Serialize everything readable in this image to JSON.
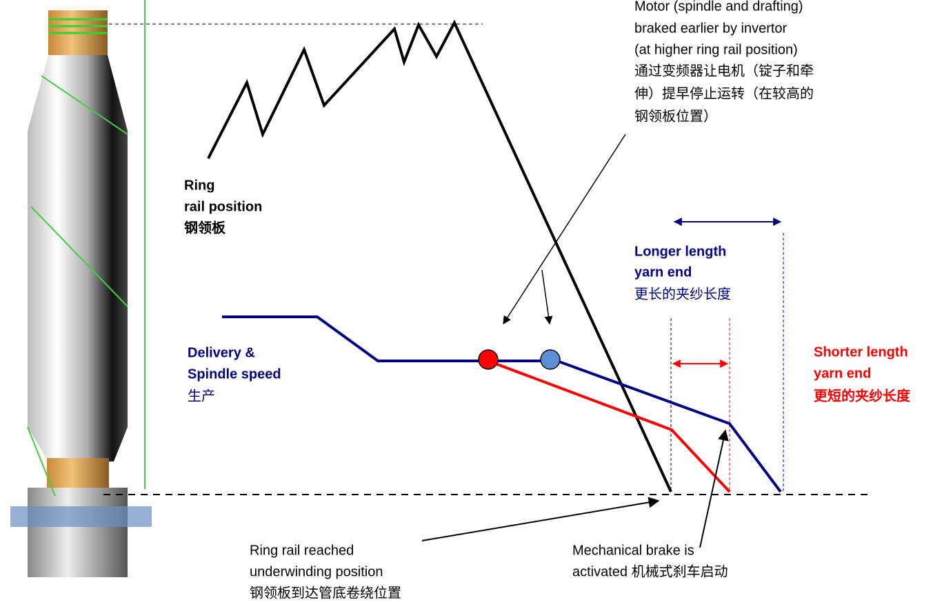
{
  "motor_label": [
    "Motor (spindle and drafting)",
    "braked earlier by invertor",
    "(at higher ring rail position)",
    "通过变频器让电机（锭子和牵",
    "伸）提早停止运转（在较高的",
    "钢领板位置）"
  ],
  "ring_rail_label": [
    "Ring",
    "rail position",
    "钢领板"
  ],
  "delivery_label": [
    "Delivery &",
    "Spindle speed",
    "生产"
  ],
  "longer_label": [
    "Longer length",
    "yarn end",
    "更长的夹纱长度"
  ],
  "shorter_label": [
    "Shorter length",
    "yarn end",
    "更短的夹纱长度"
  ],
  "underwinding_label": [
    "Ring rail reached",
    "underwinding position",
    "钢领板到达管底卷绕位置"
  ],
  "brake_label": [
    "Mechanical brake is",
    "activated 机械式刹车启动"
  ]
}
